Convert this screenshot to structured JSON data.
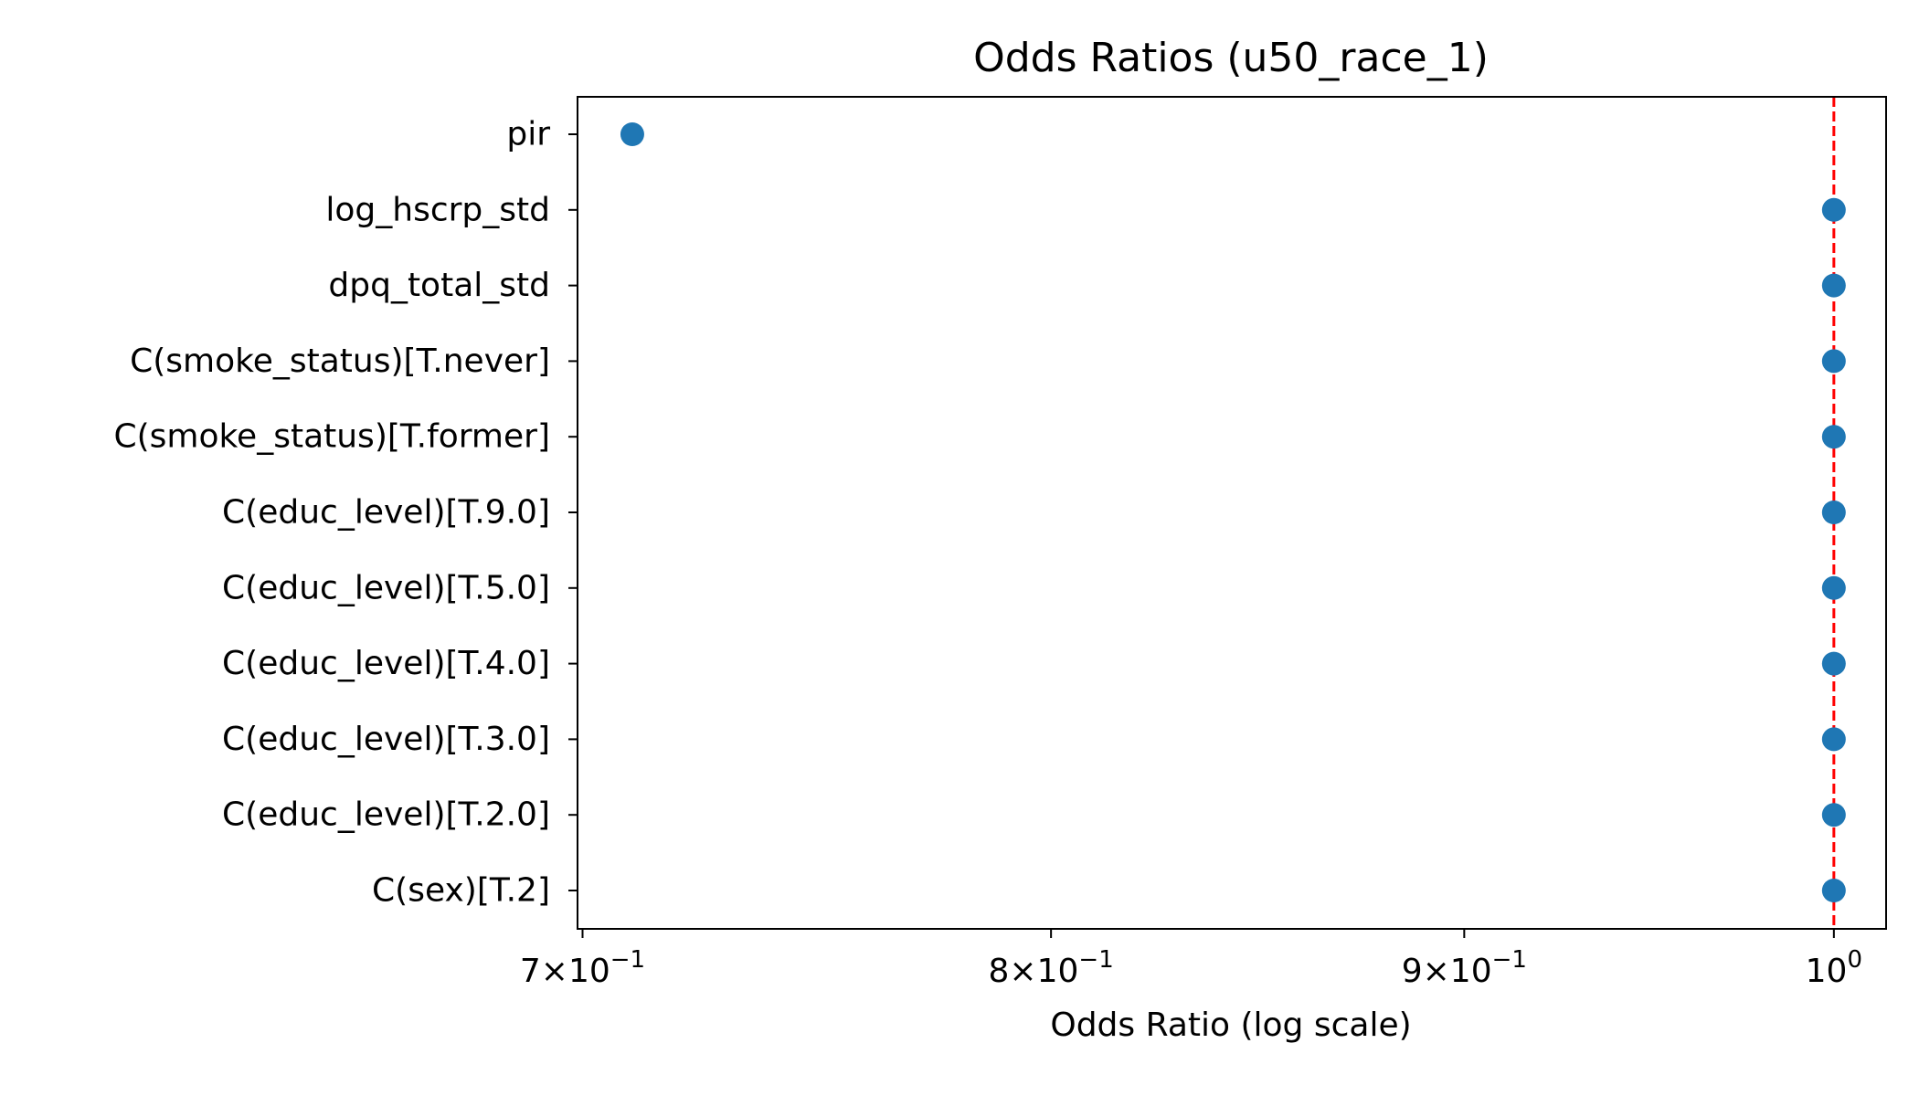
{
  "chart_data": {
    "type": "scatter",
    "title": "Odds Ratios (u50_race_1)",
    "xlabel": "Odds Ratio (log scale)",
    "ylabel": "",
    "x_scale": "log",
    "xlim": [
      0.699,
      1.015
    ],
    "grid": false,
    "marker_color": "#1f77b4",
    "reference_line": {
      "x": 1.0,
      "color": "#ff0000",
      "style": "dashed"
    },
    "x_ticks": [
      {
        "value": 0.7,
        "mantissa": "7",
        "base": "10",
        "exp": "−1"
      },
      {
        "value": 0.8,
        "mantissa": "8",
        "base": "10",
        "exp": "−1"
      },
      {
        "value": 0.9,
        "mantissa": "9",
        "base": "10",
        "exp": "−1"
      },
      {
        "value": 1.0,
        "mantissa": "",
        "base": "10",
        "exp": "0"
      }
    ],
    "categories": [
      "pir",
      "log_hscrp_std",
      "dpq_total_std",
      "C(smoke_status)[T.never]",
      "C(smoke_status)[T.former]",
      "C(educ_level)[T.9.0]",
      "C(educ_level)[T.5.0]",
      "C(educ_level)[T.4.0]",
      "C(educ_level)[T.3.0]",
      "C(educ_level)[T.2.0]",
      "C(sex)[T.2]"
    ],
    "values": [
      0.71,
      1.0,
      1.0,
      1.0,
      1.0,
      1.0,
      1.0,
      1.0,
      1.0,
      1.0,
      1.0
    ]
  }
}
